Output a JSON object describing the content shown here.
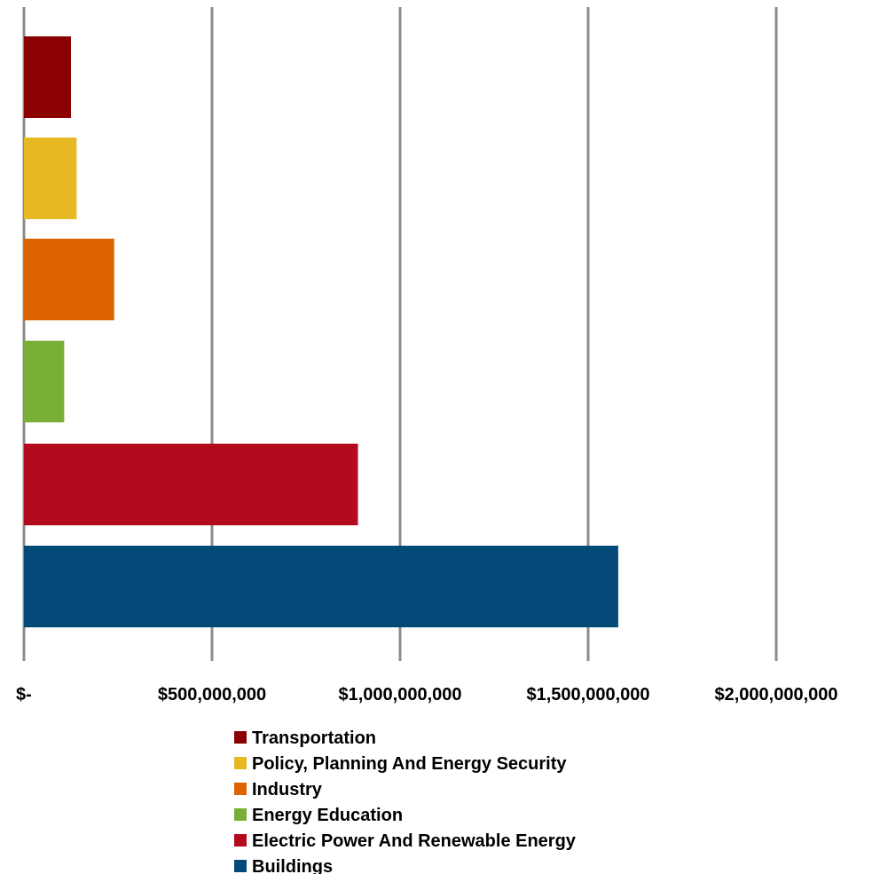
{
  "chart_data": {
    "type": "bar",
    "orientation": "horizontal",
    "categories": [
      "Transportation",
      "Policy, Planning And Energy Security",
      "Industry",
      "Energy Education",
      "Electric Power And Renewable Energy",
      "Buildings"
    ],
    "values": [
      125000000,
      140000000,
      240000000,
      107000000,
      888000000,
      1580000000
    ],
    "colors": [
      "#8b0000",
      "#e6b824",
      "#dd6300",
      "#79af37",
      "#b40a1e",
      "#034a78"
    ],
    "xlim": [
      0,
      2000000000
    ],
    "x_tick_labels": [
      "$-",
      "$500,000,000",
      "$1,000,000,000",
      "$1,500,000,000",
      "$2,000,000,000"
    ],
    "title": "",
    "xlabel": "",
    "ylabel": "",
    "grid": "vertical",
    "legend_position": "bottom",
    "legend": [
      "Transportation",
      "Policy, Planning And Energy Security",
      "Industry",
      "Energy Education",
      "Electric Power And Renewable Energy",
      "Buildings"
    ]
  }
}
